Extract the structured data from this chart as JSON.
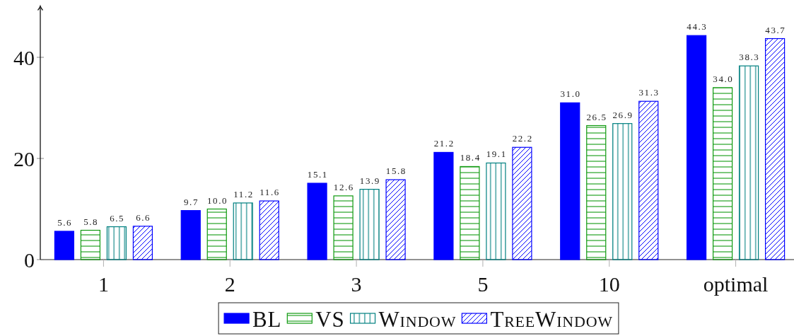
{
  "chart_data": {
    "type": "bar",
    "categories": [
      "1",
      "2",
      "3",
      "5",
      "10",
      "optimal"
    ],
    "series": [
      {
        "name": "BL",
        "color": "#0000ff",
        "values": [
          5.6,
          9.7,
          15.1,
          21.2,
          31.0,
          44.3
        ],
        "value_labels": [
          "5.6",
          "9.7",
          "15.1",
          "21.2",
          "31.0",
          "44.3"
        ]
      },
      {
        "name": "VS",
        "color": "#109a10",
        "values": [
          5.8,
          10.0,
          12.6,
          18.4,
          26.5,
          34.0
        ],
        "value_labels": [
          "5.8",
          "10.0",
          "12.6",
          "18.4",
          "26.5",
          "34.0"
        ]
      },
      {
        "name": "Window",
        "color": "#008080",
        "values": [
          6.5,
          11.2,
          13.9,
          19.1,
          26.9,
          38.3
        ],
        "value_labels": [
          "6.5",
          "11.2",
          "13.9",
          "19.1",
          "26.9",
          "38.3"
        ]
      },
      {
        "name": "TreeWindow",
        "color": "#0000ff",
        "values": [
          6.6,
          11.6,
          15.8,
          22.2,
          31.3,
          43.7
        ],
        "value_labels": [
          "6.6",
          "11.6",
          "15.8",
          "22.2",
          "31.3",
          "43.7"
        ]
      }
    ],
    "ylim": [
      0,
      50
    ],
    "yticks": [
      0,
      20,
      40
    ],
    "legend": "bottom"
  }
}
